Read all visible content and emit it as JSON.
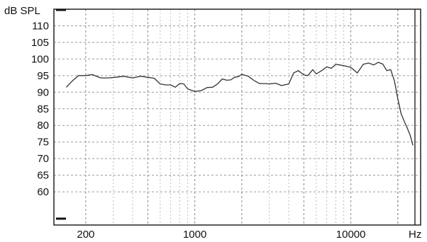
{
  "chart_data": {
    "type": "line",
    "ylabel": "dB SPL",
    "xlabel": "Hz",
    "x_scale": "log",
    "xlim": [
      125,
      28000
    ],
    "ylim": [
      50,
      115
    ],
    "y_ticks": [
      60,
      65,
      70,
      75,
      80,
      85,
      90,
      95,
      100,
      105,
      110
    ],
    "x_ticks": [
      200,
      1000,
      10000
    ],
    "x_tick_labels": [
      "200",
      "1000",
      "10000"
    ],
    "grid": true,
    "line_color": "#333333",
    "series": [
      {
        "x": [
          150,
          165,
          180,
          200,
          220,
          250,
          280,
          310,
          350,
          400,
          450,
          500,
          550,
          600,
          650,
          700,
          750,
          800,
          850,
          900,
          1000,
          1100,
          1200,
          1300,
          1400,
          1500,
          1600,
          1700,
          1800,
          1900,
          2000,
          2200,
          2400,
          2600,
          2800,
          3000,
          3300,
          3600,
          4000,
          4300,
          4600,
          5000,
          5300,
          5700,
          6000,
          6500,
          7000,
          7500,
          8000,
          8500,
          9000,
          10000,
          11000,
          12000,
          13000,
          14000,
          15000,
          16000,
          17000,
          18000,
          19000,
          20000,
          21000,
          22000,
          23000,
          24000,
          25000
        ],
        "values": [
          91.5,
          93.5,
          95.0,
          95.0,
          95.3,
          94.3,
          94.3,
          94.5,
          94.8,
          94.3,
          94.8,
          94.5,
          94.2,
          92.5,
          92.2,
          92.2,
          91.5,
          92.6,
          92.5,
          91.0,
          90.2,
          90.5,
          91.4,
          91.5,
          92.5,
          94.0,
          93.6,
          93.7,
          94.5,
          94.7,
          95.4,
          94.8,
          93.5,
          92.6,
          92.6,
          92.5,
          92.7,
          92.0,
          92.5,
          95.8,
          96.5,
          95.2,
          95.0,
          96.8,
          95.5,
          96.5,
          97.6,
          97.2,
          98.4,
          98.2,
          98.0,
          97.5,
          95.8,
          98.4,
          98.8,
          98.2,
          99.0,
          98.5,
          96.5,
          96.8,
          93.5,
          88.0,
          83.5,
          81.2,
          79.2,
          77.0,
          74.0
        ]
      }
    ]
  }
}
